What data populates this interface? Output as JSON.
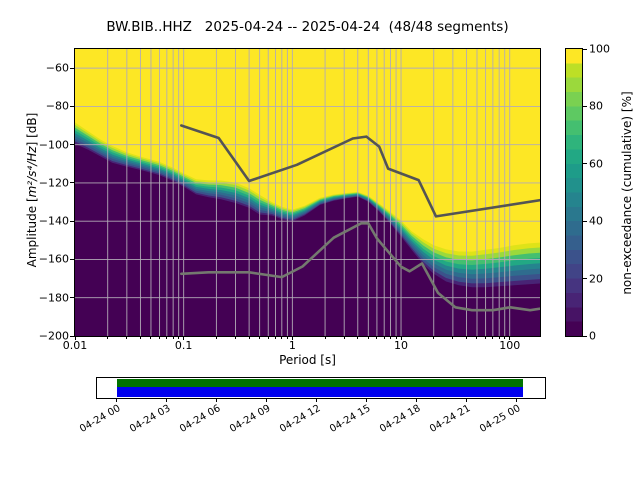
{
  "figure": {
    "title": "BW.BIB..HHZ   2025-04-24 -- 2025-04-24  (48/48 segments)"
  },
  "axes": {
    "ylabel_prefix": "Amplitude [",
    "ylabel_math": "m²/s⁴/Hz",
    "ylabel_suffix": "] [dB]",
    "xlabel": "Period [s]",
    "x_tick_labels": [
      "0.01",
      "0.1",
      "1",
      "10",
      "100"
    ],
    "y_tick_labels": [
      "−60",
      "−80",
      "−100",
      "−120",
      "−140",
      "−160",
      "−180",
      "−200"
    ]
  },
  "colorbar": {
    "label": "non-exceedance (cumulative) [%]",
    "tick_labels": [
      "0",
      "20",
      "40",
      "60",
      "80",
      "100"
    ],
    "tick_values": [
      0,
      20,
      40,
      60,
      80,
      100
    ],
    "viridis_stops": [
      "#440154",
      "#471365",
      "#482475",
      "#463480",
      "#414487",
      "#3b528b",
      "#355f8d",
      "#2f6c8e",
      "#2a788e",
      "#25848e",
      "#21918c",
      "#1e9c89",
      "#22a884",
      "#2fb47c",
      "#44bf70",
      "#5ec962",
      "#7ad151",
      "#9bd93c",
      "#bddf26",
      "#dfe318",
      "#fde725"
    ]
  },
  "timeline": {
    "labels": [
      "04-24 00",
      "04-24 03",
      "04-24 06",
      "04-24 09",
      "04-24 12",
      "04-24 15",
      "04-24 18",
      "04-24 21",
      "04-25 00"
    ],
    "green_color": "#007200",
    "blue_color": "#0000ee"
  },
  "colors": {
    "yellow": "#fde725",
    "dark": "#440154",
    "grid": "#b2abb6",
    "nhnm_line": "#545454",
    "nlnm_line": "#74796f",
    "band_colors": [
      "#dfe318",
      "#9bd93c",
      "#44bf70",
      "#22a884",
      "#25848e",
      "#2f6c8e",
      "#3b528b",
      "#482475",
      "#440154"
    ]
  },
  "chart_data": {
    "type": "heatmap",
    "title": "BW.BIB..HHZ   2025-04-24 -- 2025-04-24  (48/48 segments)",
    "xlabel": "Period [s]",
    "ylabel": "Amplitude [m^2/s^4/Hz] [dB]",
    "x_scale": "log",
    "xlim": [
      0.01,
      190
    ],
    "ylim": [
      -200,
      -50
    ],
    "grid": true,
    "x_tick_values": [
      0.01,
      0.1,
      1,
      10,
      100
    ],
    "y_tick_values": [
      -60,
      -80,
      -100,
      -120,
      -140,
      -160,
      -180,
      -200
    ],
    "colorbar_label": "non-exceedance (cumulative) [%]",
    "colorbar_range": [
      0,
      100
    ],
    "description": "Cumulative PPSD: non-exceedance = 100% (yellow) above transition band, 0% (dark purple) below; transition_top_db is the ~100% boundary, transition_bottom_db the ~0% boundary",
    "periods": [
      0.01,
      0.013,
      0.017,
      0.022,
      0.03,
      0.042,
      0.06,
      0.08,
      0.1,
      0.13,
      0.17,
      0.22,
      0.3,
      0.4,
      0.5,
      0.65,
      0.8,
      1.0,
      1.3,
      1.8,
      2.4,
      3.2,
      4.0,
      5.0,
      6.3,
      7.9,
      10,
      12.5,
      16,
      20,
      26,
      34,
      45,
      60,
      80,
      110,
      150,
      200
    ],
    "transition_top_db": [
      -87.5,
      -92,
      -96.5,
      -100,
      -103.5,
      -106,
      -108.5,
      -111.5,
      -114.5,
      -117.5,
      -118,
      -118,
      -119,
      -122,
      -125.5,
      -129.5,
      -132,
      -133.5,
      -131.5,
      -127.5,
      -125.8,
      -125,
      -124.5,
      -126.5,
      -130.5,
      -134.5,
      -139,
      -144.5,
      -148.5,
      -151.5,
      -153.5,
      -154.5,
      -154.5,
      -153.5,
      -152.5,
      -151,
      -150,
      -149.5
    ],
    "transition_bottom_db": [
      -99.5,
      -102.5,
      -106,
      -109.5,
      -111.5,
      -113.5,
      -116,
      -119,
      -122,
      -126,
      -127.5,
      -128.5,
      -130.5,
      -133,
      -136.5,
      -137,
      -139,
      -140,
      -137,
      -131.5,
      -129.3,
      -128,
      -127.2,
      -129.8,
      -135,
      -141,
      -148,
      -155,
      -162.5,
      -167.5,
      -171.5,
      -173.5,
      -174.5,
      -174.5,
      -174,
      -173.5,
      -173,
      -172.5
    ],
    "band_fractions": [
      0.07,
      0.18,
      0.3,
      0.42,
      0.54,
      0.66,
      0.78,
      0.9,
      1.0
    ],
    "noise_models": {
      "high": [
        [
          0.095,
          -90
        ],
        [
          0.21,
          -96.5
        ],
        [
          0.4,
          -119
        ],
        [
          1.1,
          -110.5
        ],
        [
          3.6,
          -96.8
        ],
        [
          4.8,
          -95.8
        ],
        [
          6.3,
          -101
        ],
        [
          7.6,
          -112.5
        ],
        [
          14.5,
          -118.5
        ],
        [
          21,
          -137.5
        ],
        [
          200,
          -128.8
        ]
      ],
      "low": [
        [
          0.095,
          -167.5
        ],
        [
          0.17,
          -166.7
        ],
        [
          0.4,
          -166.7
        ],
        [
          0.8,
          -169.2
        ],
        [
          1.24,
          -163.7
        ],
        [
          2.4,
          -148.6
        ],
        [
          4.3,
          -141.1
        ],
        [
          5.0,
          -141.1
        ],
        [
          6.0,
          -149
        ],
        [
          10,
          -163.8
        ],
        [
          12,
          -166.2
        ],
        [
          15.6,
          -162.1
        ],
        [
          21.9,
          -177.5
        ],
        [
          31.6,
          -185
        ],
        [
          45,
          -186.5
        ],
        [
          70,
          -186.5
        ],
        [
          101,
          -185
        ],
        [
          154,
          -186.5
        ],
        [
          200,
          -185.5
        ]
      ]
    },
    "timeline": {
      "tick_labels": [
        "04-24 00",
        "04-24 03",
        "04-24 06",
        "04-24 09",
        "04-24 12",
        "04-24 15",
        "04-24 18",
        "04-24 21",
        "04-25 00"
      ],
      "coverage": "continuous 04-24 00:00 to 04-25 00:25"
    }
  }
}
